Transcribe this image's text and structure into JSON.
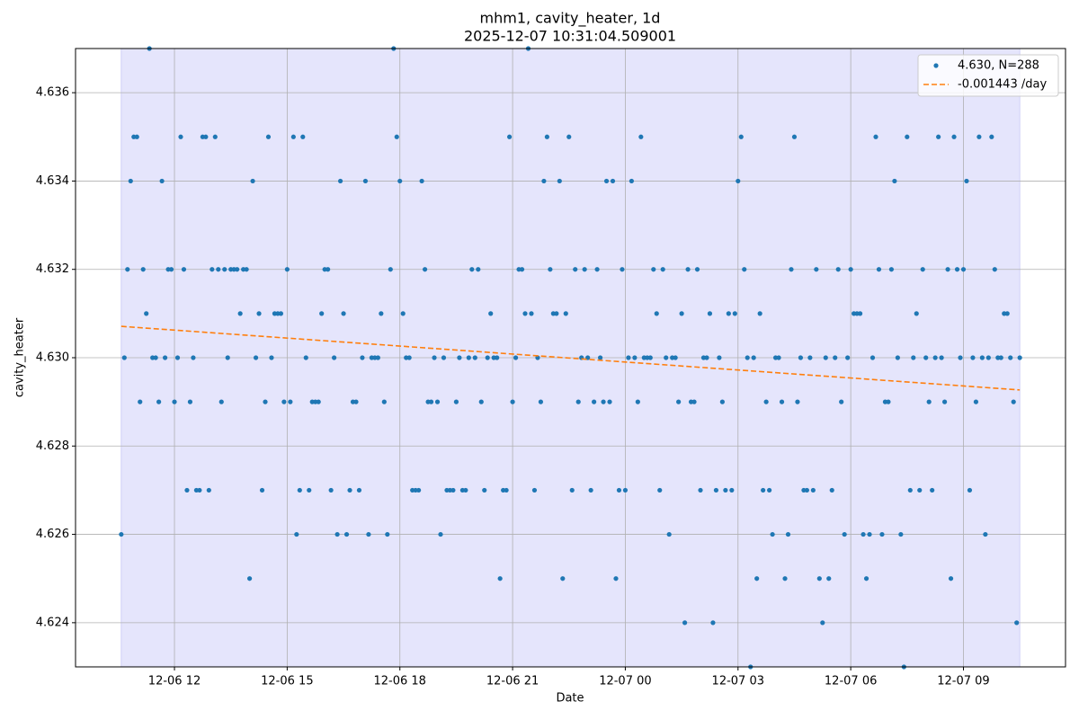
{
  "chart_data": {
    "type": "scatter",
    "title": "mhm1, cavity_heater, 1d",
    "subtitle": "2025-12-07 10:31:04.509001",
    "x_label": "Date",
    "y_label": "cavity_heater",
    "xlim": [
      "12-06 09:22",
      "12-07 11:43"
    ],
    "xticks": [
      {
        "value": "12-06 12:00",
        "label": "12-06 12"
      },
      {
        "value": "12-06 15:00",
        "label": "12-06 15"
      },
      {
        "value": "12-06 18:00",
        "label": "12-06 18"
      },
      {
        "value": "12-06 21:00",
        "label": "12-06 21"
      },
      {
        "value": "12-07 00:00",
        "label": "12-07 00"
      },
      {
        "value": "12-07 03:00",
        "label": "12-07 03"
      },
      {
        "value": "12-07 06:00",
        "label": "12-07 06"
      },
      {
        "value": "12-07 09:00",
        "label": "12-07 09"
      }
    ],
    "ylim": [
      4.623,
      4.637
    ],
    "yticks": [
      4.624,
      4.626,
      4.628,
      {
        "value": 4.63,
        "label": "4.630"
      },
      4.632,
      4.634,
      4.636
    ],
    "grid": true,
    "legend": "upper right",
    "shaded_span": {
      "x": [
        "12-06 10:35",
        "12-07 10:30"
      ],
      "color": "#e5e5fc"
    },
    "series": [
      {
        "name": "4.630, N=288",
        "color": "#1f77b4",
        "kind": "points",
        "x": [
          "12-06 10:35",
          "12-06 10:40",
          "12-06 10:45",
          "12-06 10:50",
          "12-06 10:55",
          "12-06 11:00",
          "12-06 11:05",
          "12-06 11:10",
          "12-06 11:15",
          "12-06 11:20",
          "12-06 11:25",
          "12-06 11:30",
          "12-06 11:35",
          "12-06 11:40",
          "12-06 11:45",
          "12-06 11:50",
          "12-06 11:55",
          "12-06 12:00",
          "12-06 12:05",
          "12-06 12:10",
          "12-06 12:15",
          "12-06 12:20",
          "12-06 12:25",
          "12-06 12:30",
          "12-06 12:35",
          "12-06 12:40",
          "12-06 12:45",
          "12-06 12:50",
          "12-06 12:55",
          "12-06 13:00",
          "12-06 13:05",
          "12-06 13:10",
          "12-06 13:15",
          "12-06 13:20",
          "12-06 13:25",
          "12-06 13:30",
          "12-06 13:35",
          "12-06 13:40",
          "12-06 13:45",
          "12-06 13:50",
          "12-06 13:55",
          "12-06 14:00",
          "12-06 14:05",
          "12-06 14:10",
          "12-06 14:15",
          "12-06 14:20",
          "12-06 14:25",
          "12-06 14:30",
          "12-06 14:35",
          "12-06 14:40",
          "12-06 14:45",
          "12-06 14:50",
          "12-06 14:55",
          "12-06 15:00",
          "12-06 15:05",
          "12-06 15:10",
          "12-06 15:15",
          "12-06 15:20",
          "12-06 15:25",
          "12-06 15:30",
          "12-06 15:35",
          "12-06 15:40",
          "12-06 15:45",
          "12-06 15:50",
          "12-06 15:55",
          "12-06 16:00",
          "12-06 16:05",
          "12-06 16:10",
          "12-06 16:15",
          "12-06 16:20",
          "12-06 16:25",
          "12-06 16:30",
          "12-06 16:35",
          "12-06 16:40",
          "12-06 16:45",
          "12-06 16:50",
          "12-06 16:55",
          "12-06 17:00",
          "12-06 17:05",
          "12-06 17:10",
          "12-06 17:15",
          "12-06 17:20",
          "12-06 17:25",
          "12-06 17:30",
          "12-06 17:35",
          "12-06 17:40",
          "12-06 17:45",
          "12-06 17:50",
          "12-06 17:55",
          "12-06 18:00",
          "12-06 18:05",
          "12-06 18:10",
          "12-06 18:15",
          "12-06 18:20",
          "12-06 18:25",
          "12-06 18:30",
          "12-06 18:35",
          "12-06 18:40",
          "12-06 18:45",
          "12-06 18:50",
          "12-06 18:55",
          "12-06 19:00",
          "12-06 19:05",
          "12-06 19:10",
          "12-06 19:15",
          "12-06 19:20",
          "12-06 19:25",
          "12-06 19:30",
          "12-06 19:35",
          "12-06 19:40",
          "12-06 19:45",
          "12-06 19:50",
          "12-06 19:55",
          "12-06 20:00",
          "12-06 20:05",
          "12-06 20:10",
          "12-06 20:15",
          "12-06 20:20",
          "12-06 20:25",
          "12-06 20:30",
          "12-06 20:35",
          "12-06 20:40",
          "12-06 20:45",
          "12-06 20:50",
          "12-06 20:55",
          "12-06 21:00",
          "12-06 21:05",
          "12-06 21:10",
          "12-06 21:15",
          "12-06 21:20",
          "12-06 21:25",
          "12-06 21:30",
          "12-06 21:35",
          "12-06 21:40",
          "12-06 21:45",
          "12-06 21:50",
          "12-06 21:55",
          "12-06 22:00",
          "12-06 22:05",
          "12-06 22:10",
          "12-06 22:15",
          "12-06 22:20",
          "12-06 22:25",
          "12-06 22:30",
          "12-06 22:35",
          "12-06 22:40",
          "12-06 22:45",
          "12-06 22:50",
          "12-06 22:55",
          "12-06 23:00",
          "12-06 23:05",
          "12-06 23:10",
          "12-06 23:15",
          "12-06 23:20",
          "12-06 23:25",
          "12-06 23:30",
          "12-06 23:35",
          "12-06 23:40",
          "12-06 23:45",
          "12-06 23:50",
          "12-06 23:55",
          "12-07 00:00",
          "12-07 00:05",
          "12-07 00:10",
          "12-07 00:15",
          "12-07 00:20",
          "12-07 00:25",
          "12-07 00:30",
          "12-07 00:35",
          "12-07 00:40",
          "12-07 00:45",
          "12-07 00:50",
          "12-07 00:55",
          "12-07 01:00",
          "12-07 01:05",
          "12-07 01:10",
          "12-07 01:15",
          "12-07 01:20",
          "12-07 01:25",
          "12-07 01:30",
          "12-07 01:35",
          "12-07 01:40",
          "12-07 01:45",
          "12-07 01:50",
          "12-07 01:55",
          "12-07 02:00",
          "12-07 02:05",
          "12-07 02:10",
          "12-07 02:15",
          "12-07 02:20",
          "12-07 02:25",
          "12-07 02:30",
          "12-07 02:35",
          "12-07 02:40",
          "12-07 02:45",
          "12-07 02:50",
          "12-07 02:55",
          "12-07 03:00",
          "12-07 03:05",
          "12-07 03:10",
          "12-07 03:15",
          "12-07 03:20",
          "12-07 03:25",
          "12-07 03:30",
          "12-07 03:35",
          "12-07 03:40",
          "12-07 03:45",
          "12-07 03:50",
          "12-07 03:55",
          "12-07 04:00",
          "12-07 04:05",
          "12-07 04:10",
          "12-07 04:15",
          "12-07 04:20",
          "12-07 04:25",
          "12-07 04:30",
          "12-07 04:35",
          "12-07 04:40",
          "12-07 04:45",
          "12-07 04:50",
          "12-07 04:55",
          "12-07 05:00",
          "12-07 05:05",
          "12-07 05:10",
          "12-07 05:15",
          "12-07 05:20",
          "12-07 05:25",
          "12-07 05:30",
          "12-07 05:35",
          "12-07 05:40",
          "12-07 05:45",
          "12-07 05:50",
          "12-07 05:55",
          "12-07 06:00",
          "12-07 06:05",
          "12-07 06:10",
          "12-07 06:15",
          "12-07 06:20",
          "12-07 06:25",
          "12-07 06:30",
          "12-07 06:35",
          "12-07 06:40",
          "12-07 06:45",
          "12-07 06:50",
          "12-07 06:55",
          "12-07 07:00",
          "12-07 07:05",
          "12-07 07:10",
          "12-07 07:15",
          "12-07 07:20",
          "12-07 07:25",
          "12-07 07:30",
          "12-07 07:35",
          "12-07 07:40",
          "12-07 07:45",
          "12-07 07:50",
          "12-07 07:55",
          "12-07 08:00",
          "12-07 08:05",
          "12-07 08:10",
          "12-07 08:15",
          "12-07 08:20",
          "12-07 08:25",
          "12-07 08:30",
          "12-07 08:35",
          "12-07 08:40",
          "12-07 08:45",
          "12-07 08:50",
          "12-07 08:55",
          "12-07 09:00",
          "12-07 09:05",
          "12-07 09:10",
          "12-07 09:15",
          "12-07 09:20",
          "12-07 09:25",
          "12-07 09:30",
          "12-07 09:35",
          "12-07 09:40",
          "12-07 09:45",
          "12-07 09:50",
          "12-07 09:55",
          "12-07 10:00",
          "12-07 10:05",
          "12-07 10:10",
          "12-07 10:15",
          "12-07 10:20",
          "12-07 10:25",
          "12-07 10:30"
        ],
        "values": [
          4.626,
          4.63,
          4.632,
          4.634,
          4.635,
          4.635,
          4.629,
          4.632,
          4.631,
          4.637,
          4.63,
          4.63,
          4.629,
          4.634,
          4.63,
          4.632,
          4.632,
          4.629,
          4.63,
          4.635,
          4.632,
          4.627,
          4.629,
          4.63,
          4.627,
          4.627,
          4.635,
          4.635,
          4.627,
          4.632,
          4.635,
          4.632,
          4.629,
          4.632,
          4.63,
          4.632,
          4.632,
          4.632,
          4.631,
          4.632,
          4.632,
          4.625,
          4.634,
          4.63,
          4.631,
          4.627,
          4.629,
          4.635,
          4.63,
          4.631,
          4.631,
          4.631,
          4.629,
          4.632,
          4.629,
          4.635,
          4.626,
          4.627,
          4.635,
          4.63,
          4.627,
          4.629,
          4.629,
          4.629,
          4.631,
          4.632,
          4.632,
          4.627,
          4.63,
          4.626,
          4.634,
          4.631,
          4.626,
          4.627,
          4.629,
          4.629,
          4.627,
          4.63,
          4.634,
          4.626,
          4.63,
          4.63,
          4.63,
          4.631,
          4.629,
          4.626,
          4.632,
          4.637,
          4.635,
          4.634,
          4.631,
          4.63,
          4.63,
          4.627,
          4.627,
          4.627,
          4.634,
          4.632,
          4.629,
          4.629,
          4.63,
          4.629,
          4.626,
          4.63,
          4.627,
          4.627,
          4.627,
          4.629,
          4.63,
          4.627,
          4.627,
          4.63,
          4.632,
          4.63,
          4.632,
          4.629,
          4.627,
          4.63,
          4.631,
          4.63,
          4.63,
          4.625,
          4.627,
          4.627,
          4.635,
          4.629,
          4.63,
          4.632,
          4.632,
          4.631,
          4.637,
          4.631,
          4.627,
          4.63,
          4.629,
          4.634,
          4.635,
          4.632,
          4.631,
          4.631,
          4.634,
          4.625,
          4.631,
          4.635,
          4.627,
          4.632,
          4.629,
          4.63,
          4.632,
          4.63,
          4.627,
          4.629,
          4.632,
          4.63,
          4.629,
          4.634,
          4.629,
          4.634,
          4.625,
          4.627,
          4.632,
          4.627,
          4.63,
          4.634,
          4.63,
          4.629,
          4.635,
          4.63,
          4.63,
          4.63,
          4.632,
          4.631,
          4.627,
          4.632,
          4.63,
          4.626,
          4.63,
          4.63,
          4.629,
          4.631,
          4.624,
          4.632,
          4.629,
          4.629,
          4.632,
          4.627,
          4.63,
          4.63,
          4.631,
          4.624,
          4.627,
          4.63,
          4.629,
          4.627,
          4.631,
          4.627,
          4.631,
          4.634,
          4.635,
          4.632,
          4.63,
          4.623,
          4.63,
          4.625,
          4.631,
          4.627,
          4.629,
          4.627,
          4.626,
          4.63,
          4.63,
          4.629,
          4.625,
          4.626,
          4.632,
          4.635,
          4.629,
          4.63,
          4.627,
          4.627,
          4.63,
          4.627,
          4.632,
          4.625,
          4.624,
          4.63,
          4.625,
          4.627,
          4.63,
          4.632,
          4.629,
          4.626,
          4.63,
          4.632,
          4.631,
          4.631,
          4.631,
          4.626,
          4.625,
          4.626,
          4.63,
          4.635,
          4.632,
          4.626,
          4.629,
          4.629,
          4.632,
          4.634,
          4.63,
          4.626,
          4.623,
          4.635,
          4.627,
          4.63,
          4.631,
          4.627,
          4.632,
          4.63,
          4.629,
          4.627,
          4.63,
          4.635,
          4.63,
          4.629,
          4.632,
          4.625,
          4.635,
          4.632,
          4.63,
          4.632,
          4.634,
          4.627,
          4.63,
          4.629,
          4.635,
          4.63,
          4.626,
          4.63,
          4.635,
          4.632,
          4.63,
          4.63,
          4.631,
          4.631,
          4.63,
          4.629,
          4.624,
          4.63
        ]
      },
      {
        "name": "-0.001443 /day",
        "color": "#ff7f0e",
        "kind": "dashed-line",
        "x": [
          "12-06 10:35",
          "12-07 10:30"
        ],
        "values": [
          4.63071,
          4.62927
        ]
      }
    ]
  }
}
